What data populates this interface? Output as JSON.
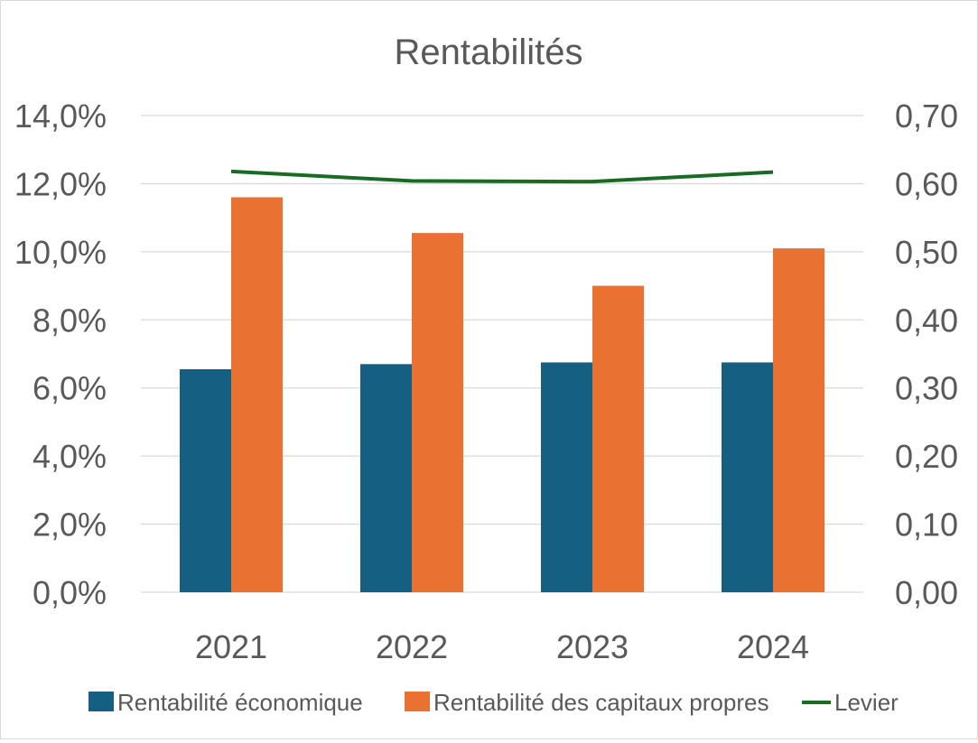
{
  "chart_data": {
    "type": "bar",
    "title": "Rentabilités",
    "categories": [
      "2021",
      "2022",
      "2023",
      "2024"
    ],
    "series": [
      {
        "name": "Rentabilité économique",
        "type": "bar",
        "axis": "left",
        "color": "#156082",
        "values": [
          6.55,
          6.7,
          6.75,
          6.75
        ]
      },
      {
        "name": "Rentabilité des capitaux propres",
        "type": "bar",
        "axis": "left",
        "color": "#E97132",
        "values": [
          11.6,
          10.55,
          9.0,
          10.1
        ]
      },
      {
        "name": "Levier",
        "type": "line",
        "axis": "right",
        "color": "#196B24",
        "values": [
          0.618,
          0.604,
          0.603,
          0.617
        ]
      }
    ],
    "left_axis": {
      "ylim": [
        0,
        14
      ],
      "ticks": [
        "0,0%",
        "2,0%",
        "4,0%",
        "6,0%",
        "8,0%",
        "10,0%",
        "12,0%",
        "14,0%"
      ]
    },
    "right_axis": {
      "ylim": [
        0,
        0.7
      ],
      "ticks": [
        "0,00",
        "0,10",
        "0,20",
        "0,30",
        "0,40",
        "0,50",
        "0,60",
        "0,70"
      ]
    },
    "grid": true,
    "legend_position": "bottom",
    "xlabel": "",
    "ylabel": ""
  }
}
